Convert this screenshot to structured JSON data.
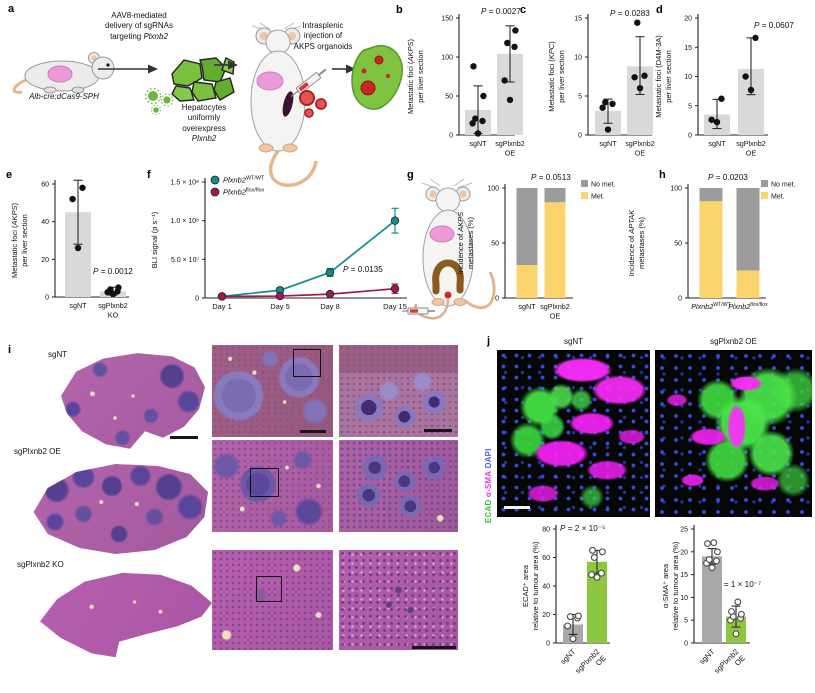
{
  "panel_labels": {
    "a": "a",
    "b": "b",
    "c": "c",
    "d": "d",
    "e": "e",
    "f": "f",
    "g": "g",
    "h": "h",
    "i": "i",
    "j": "j"
  },
  "panel_a": {
    "step1_lines": [
      "AAV8-mediated",
      "delivery of sgRNAs"
    ],
    "step1_prefix": "targeting ",
    "gene": "Plxnb2",
    "mouse_genotype": "Alb-cre;dCas9-SPH",
    "hep_lines": [
      "Hepatocytes",
      "uniformly",
      "overexpress"
    ],
    "step2_lines": [
      "Intrasplenic",
      "injection of",
      "AKPS organoids"
    ]
  },
  "colors": {
    "bar_light_gray": "#d9d9d9",
    "bar_gray": "#a9a9a9",
    "bar_green": "#8dc63f",
    "line_wt": "#108d8a",
    "line_flox": "#9c1a52",
    "no_met_gray": "#9c9c9c",
    "met_yellow": "#fbd46d"
  },
  "chart_data": {
    "charts": {
      "b": {
        "type": "dotbar",
        "ylabel": [
          "Metastatic foci (*AKPS*)",
          "per liver section"
        ],
        "ylim": [
          0,
          150
        ],
        "yticks": [
          0,
          50,
          100,
          150
        ],
        "p": "*P* = 0.0027",
        "cats": [
          {
            "label": [
              "sgNT"
            ],
            "mean": 32,
            "err": [
              2,
              63
            ],
            "points": [
              2,
              15,
              18,
              21,
              50,
              88
            ]
          },
          {
            "label": [
              "sgPlxnb2",
              "OE"
            ],
            "mean": 104,
            "err": [
              68,
              140
            ],
            "points": [
              45,
              70,
              113,
              118,
              134
            ]
          }
        ]
      },
      "c": {
        "type": "dotbar",
        "ylabel": [
          "Metastatic foci (*KPC*)",
          "per liver section"
        ],
        "ylim": [
          0,
          15
        ],
        "yticks": [
          0,
          5,
          10,
          15
        ],
        "p": "*P* = 0.0283",
        "cats": [
          {
            "label": [
              "sgNT"
            ],
            "mean": 3.1,
            "err": [
              1.5,
              4.6
            ],
            "points": [
              0.7,
              3.5,
              4,
              4.2
            ]
          },
          {
            "label": [
              "sgPlxnb2",
              "OE"
            ],
            "mean": 8.8,
            "err": [
              5.2,
              12.6
            ],
            "points": [
              6,
              7.4,
              7.6,
              14.4
            ]
          }
        ]
      },
      "d": {
        "type": "dotbar",
        "ylabel": [
          "Metastatic foci (D4M-3A)",
          "per liver section"
        ],
        "ylim": [
          0,
          20
        ],
        "yticks": [
          0,
          5,
          10,
          15,
          20
        ],
        "p": "*P* = 0.0607",
        "cats": [
          {
            "label": [
              "sgNT"
            ],
            "mean": 3.5,
            "err": [
              1.1,
              6.1
            ],
            "points": [
              2.2,
              2.6,
              6.2
            ]
          },
          {
            "label": [
              "sgPlxnb2",
              "OE"
            ],
            "mean": 11.3,
            "err": [
              6.9,
              16.6
            ],
            "points": [
              7.7,
              10,
              16.6
            ]
          }
        ]
      },
      "e": {
        "type": "dotbar",
        "ylabel": [
          "Metastatic foci (*AKPS*)",
          "per liver section"
        ],
        "ylim": [
          0,
          60
        ],
        "yticks": [
          0,
          20,
          40,
          60
        ],
        "p": "*P* = 0.0012",
        "cats": [
          {
            "label": [
              "sgNT"
            ],
            "mean": 45,
            "err": [
              28,
              62
            ],
            "points": [
              26,
              52,
              58
            ]
          },
          {
            "label": [
              "sgPlxnb2",
              "KO"
            ],
            "mean": 3,
            "err": [
              1,
              5.2
            ],
            "points": [
              1.5,
              2.5,
              3,
              4,
              5
            ]
          }
        ]
      },
      "f": {
        "type": "line",
        "ylabel": [
          "BLI signal (p s⁻¹)"
        ],
        "ylim": [
          0,
          150000000.0
        ],
        "yticks": [
          {
            "v": 0,
            "label": "0"
          },
          {
            "v": 50000000.0,
            "label": "5.0 × 10⁷"
          },
          {
            "v": 100000000.0,
            "label": "1.0 × 10⁸"
          },
          {
            "v": 150000000.0,
            "label": "1.5 × 10⁸"
          }
        ],
        "x": [
          "Day 1",
          "Day 5",
          "Day 8",
          "Day 15"
        ],
        "p": "*P* = 0.0135",
        "series": [
          {
            "name": "*Plxnb2*^WT/WT^",
            "color": "#108d8a",
            "values": [
              2000000.0,
              10000000.0,
              33000000.0,
              100000000.0
            ],
            "err": [
              1000000.0,
              3000000.0,
              5000000.0,
              16000000.0
            ]
          },
          {
            "name": "*Plxnb2*^flox/flox^",
            "color": "#9c1a52",
            "values": [
              2000000.0,
              2500000.0,
              5000000.0,
              12000000.0
            ],
            "err": [
              800000.0,
              1000000.0,
              2000000.0,
              6000000.0
            ]
          }
        ]
      },
      "g": {
        "type": "stacked",
        "ylabel": [
          "Incidence of *AKPS*",
          "metastases (%)"
        ],
        "ylim": [
          0,
          100
        ],
        "yticks": [
          0,
          50,
          100
        ],
        "p": "*P* = 0.0513",
        "legend": [
          {
            "label": "No met.",
            "color": "#9c9c9c"
          },
          {
            "label": "Met.",
            "color": "#fbd46d"
          }
        ],
        "cats": [
          {
            "label": [
              "sgNT"
            ],
            "met": 30,
            "no_met": 70
          },
          {
            "label": [
              "sgPlxnb2",
              "OE"
            ],
            "met": 87,
            "no_met": 13
          }
        ]
      },
      "h": {
        "type": "stacked",
        "ylabel": [
          "Incidence of *APTAK*",
          "metastases (%)"
        ],
        "ylim": [
          0,
          100
        ],
        "yticks": [
          0,
          50,
          100
        ],
        "p": "*P* = 0.0203",
        "legend": [
          {
            "label": "No met.",
            "color": "#9c9c9c"
          },
          {
            "label": "Met.",
            "color": "#fbd46d"
          }
        ],
        "cats": [
          {
            "label": [
              "*Plxnb2*^WT/WT^"
            ],
            "met": 88,
            "no_met": 12
          },
          {
            "label": [
              "*Plxnb2*^flox/flox^"
            ],
            "met": 25,
            "no_met": 75
          }
        ]
      },
      "j_ecad": {
        "type": "dotbar",
        "ylabel": [
          "ECAD⁺ area",
          "relative to tumour area (%)"
        ],
        "ylim": [
          0,
          80
        ],
        "yticks": [
          0,
          20,
          40,
          60,
          80
        ],
        "p": "*P* = 2 × 10⁻⁵",
        "rot": true,
        "cats": [
          {
            "label": [
              "sgNT"
            ],
            "mean": 13,
            "err": [
              6,
              20
            ],
            "points": [
              3,
              12,
              17.5,
              18.5,
              19
            ],
            "color": "#a9a9a9",
            "open": true
          },
          {
            "label": [
              "sgPlxnb2",
              "OE"
            ],
            "mean": 57,
            "err": [
              49,
              65
            ],
            "points": [
              46,
              48,
              49,
              60,
              64,
              65
            ],
            "color": "#8dc63f",
            "open": true
          }
        ]
      },
      "j_asma": {
        "type": "dotbar",
        "ylabel": [
          "α-SMA⁺ area",
          "relative to tumour area (%)"
        ],
        "ylim": [
          0,
          25
        ],
        "yticks": [
          0,
          5,
          10,
          15,
          20,
          25
        ],
        "p": "*P* = 1 × 10⁻⁷",
        "rot": true,
        "cats": [
          {
            "label": [
              "sgNT"
            ],
            "mean": 19,
            "err": [
              17.3,
              20.7
            ],
            "points": [
              16.5,
              17.5,
              18,
              18.3,
              20,
              21.8,
              22
            ],
            "color": "#a9a9a9",
            "open": true
          },
          {
            "label": [
              "sgPlxnb2",
              "OE"
            ],
            "mean": 5.8,
            "err": [
              3.5,
              8.1
            ],
            "points": [
              2,
              5,
              5.4,
              5.8,
              6.3,
              6.9,
              9
            ],
            "color": "#8dc63f",
            "open": true
          }
        ]
      }
    }
  },
  "panel_i": {
    "rows": [
      "sgNT",
      "sgPlxnb2 OE",
      "sgPlxnb2 KO"
    ]
  },
  "panel_j": {
    "titles": [
      "sgNT",
      "sgPlxnb2 OE"
    ],
    "stains": [
      {
        "name": "ECAD",
        "color": "#3ec63e"
      },
      {
        "name": "α-SMA",
        "color": "#e43ae4"
      },
      {
        "name": "DAPI",
        "color": "#5064e0"
      }
    ]
  }
}
